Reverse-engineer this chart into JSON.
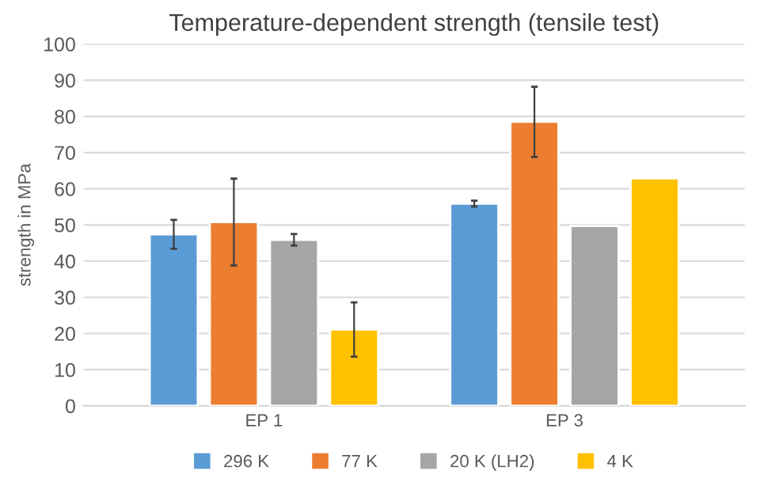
{
  "chart_data": {
    "type": "bar",
    "title": "Temperature-dependent strength (tensile test)",
    "ylabel": "strength in MPa",
    "categories": [
      "EP 1",
      "EP 3"
    ],
    "series": [
      {
        "name": "296 K",
        "color": "#5b9bd5",
        "values": [
          47.4,
          55.9
        ],
        "errors": [
          4,
          0.8
        ]
      },
      {
        "name": "77 K",
        "color": "#ed7d31",
        "values": [
          50.8,
          78.5
        ],
        "errors": [
          12,
          9.7
        ]
      },
      {
        "name": "20 K (LH2)",
        "color": "#a5a5a5",
        "values": [
          45.9,
          49.7
        ],
        "errors": [
          1.6,
          null
        ]
      },
      {
        "name": "4 K",
        "color": "#ffc000",
        "values": [
          21.1,
          62.9
        ],
        "errors": [
          7.5,
          null
        ]
      }
    ],
    "ylim": [
      0,
      100
    ],
    "yticks": [
      0,
      10,
      20,
      30,
      40,
      50,
      60,
      70,
      80,
      90,
      100
    ],
    "grid": "y",
    "legend": "bottom"
  }
}
